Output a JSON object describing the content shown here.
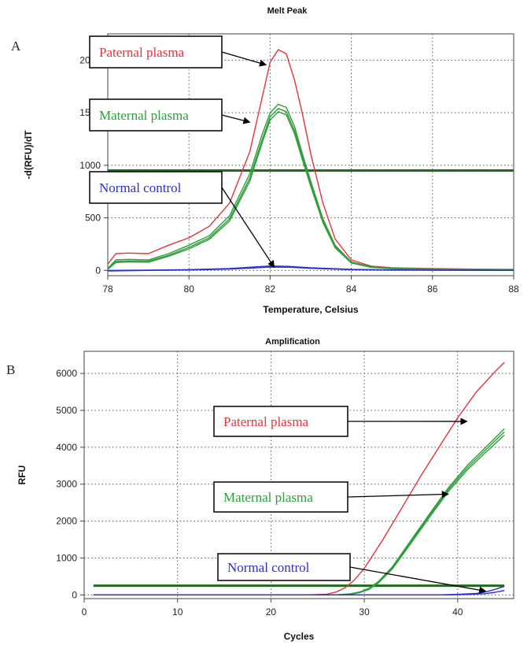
{
  "chart_data": [
    {
      "panel_label": "A",
      "type": "line",
      "title": "Melt Peak",
      "xlabel": "Temperature, Celsius",
      "ylabel": "-d(RFU)/dT",
      "xlim": [
        78,
        88
      ],
      "ylim": [
        -50,
        2250
      ],
      "xticks": [
        78,
        80,
        82,
        84,
        86,
        88
      ],
      "yticks": [
        0,
        500,
        1000,
        1500,
        2000
      ],
      "grid": true,
      "threshold": 950,
      "series": [
        {
          "color": "#e8323c",
          "x": [
            78,
            78.2,
            78.5,
            79,
            79.5,
            80,
            80.5,
            81,
            81.5,
            81.8,
            82,
            82.2,
            82.4,
            82.6,
            82.8,
            83,
            83.3,
            83.6,
            84,
            84.5,
            85,
            86,
            87,
            88
          ],
          "y": [
            60,
            160,
            165,
            160,
            240,
            310,
            420,
            640,
            1130,
            1640,
            1980,
            2100,
            2060,
            1810,
            1480,
            1110,
            640,
            300,
            100,
            40,
            25,
            18,
            12,
            10
          ]
        },
        {
          "color": "#2e9e3a",
          "x": [
            78,
            78.2,
            78.5,
            79,
            79.5,
            80,
            80.5,
            81,
            81.5,
            81.8,
            82,
            82.2,
            82.4,
            82.6,
            82.8,
            83,
            83.3,
            83.6,
            84,
            84.5,
            85,
            86,
            87,
            88
          ],
          "y": [
            20,
            100,
            105,
            100,
            160,
            240,
            330,
            520,
            920,
            1290,
            1500,
            1580,
            1550,
            1370,
            1100,
            850,
            490,
            240,
            80,
            35,
            20,
            15,
            10,
            8
          ]
        },
        {
          "color": "#2e9e3a",
          "x": [
            78,
            78.2,
            78.5,
            79,
            79.5,
            80,
            80.5,
            81,
            81.5,
            81.8,
            82,
            82.2,
            82.4,
            82.6,
            82.8,
            83,
            83.3,
            83.6,
            84,
            84.5,
            85,
            86,
            87,
            88
          ],
          "y": [
            15,
            85,
            90,
            88,
            145,
            220,
            310,
            490,
            880,
            1240,
            1460,
            1540,
            1510,
            1330,
            1070,
            820,
            470,
            225,
            75,
            30,
            18,
            13,
            9,
            7
          ]
        },
        {
          "color": "#2e9e3a",
          "x": [
            78,
            78.2,
            78.5,
            79,
            79.5,
            80,
            80.5,
            81,
            81.5,
            81.8,
            82,
            82.2,
            82.4,
            82.6,
            82.8,
            83,
            83.3,
            83.6,
            84,
            84.5,
            85,
            86,
            87,
            88
          ],
          "y": [
            10,
            75,
            80,
            78,
            135,
            205,
            295,
            470,
            850,
            1210,
            1430,
            1510,
            1480,
            1300,
            1045,
            800,
            455,
            215,
            70,
            28,
            16,
            12,
            8,
            6
          ]
        },
        {
          "color": "#2b2fd0",
          "x": [
            78,
            79,
            80,
            81,
            81.5,
            82,
            82.5,
            83,
            84,
            85,
            86,
            87,
            88
          ],
          "y": [
            0,
            3,
            8,
            18,
            30,
            42,
            38,
            25,
            10,
            5,
            3,
            2,
            1
          ]
        },
        {
          "color": "#2b2fd0",
          "x": [
            78,
            79,
            80,
            81,
            81.5,
            82,
            82.5,
            83,
            84,
            85,
            86,
            87,
            88
          ],
          "y": [
            -5,
            0,
            4,
            12,
            22,
            32,
            30,
            20,
            7,
            3,
            2,
            1,
            0
          ]
        }
      ],
      "annotations": [
        {
          "text": "Paternal plasma",
          "color": "#e8323c",
          "arrow_to": [
            81.9,
            1955
          ]
        },
        {
          "text": "Maternal plasma",
          "color": "#2e9e3a",
          "arrow_to": [
            81.5,
            1410
          ]
        },
        {
          "text": "Normal control",
          "color": "#2b2fd0",
          "arrow_to": [
            82.1,
            30
          ]
        }
      ]
    },
    {
      "panel_label": "B",
      "type": "line",
      "title": "Amplification",
      "xlabel": "Cycles",
      "ylabel": "RFU",
      "xlim": [
        0,
        46
      ],
      "ylim": [
        -100,
        6600
      ],
      "xticks": [
        0,
        10,
        20,
        30,
        40
      ],
      "yticks": [
        0,
        1000,
        2000,
        3000,
        4000,
        5000,
        6000
      ],
      "grid": true,
      "threshold": 250,
      "series": [
        {
          "color": "#e8323c",
          "x": [
            1,
            24,
            26,
            27,
            28,
            29,
            30,
            32,
            34,
            36,
            38,
            40,
            42,
            44,
            45
          ],
          "y": [
            0,
            0,
            20,
            80,
            200,
            420,
            720,
            1500,
            2350,
            3200,
            4000,
            4800,
            5500,
            6050,
            6300
          ]
        },
        {
          "color": "#2e9e3a",
          "x": [
            1,
            27,
            28.5,
            29.5,
            30.5,
            31.5,
            33,
            35,
            37,
            39,
            41,
            43,
            45
          ],
          "y": [
            0,
            0,
            30,
            80,
            180,
            360,
            760,
            1480,
            2200,
            2900,
            3500,
            4000,
            4500
          ]
        },
        {
          "color": "#2e9e3a",
          "x": [
            1,
            27,
            28.5,
            29.5,
            30.5,
            31.5,
            33,
            35,
            37,
            39,
            41,
            43,
            45
          ],
          "y": [
            0,
            0,
            25,
            70,
            165,
            340,
            730,
            1440,
            2160,
            2850,
            3440,
            3930,
            4420
          ]
        },
        {
          "color": "#2e9e3a",
          "x": [
            1,
            27,
            28.5,
            29.5,
            30.5,
            31.5,
            33,
            35,
            37,
            39,
            41,
            43,
            45
          ],
          "y": [
            0,
            0,
            20,
            60,
            150,
            320,
            700,
            1400,
            2110,
            2800,
            3380,
            3860,
            4330
          ]
        },
        {
          "color": "#2b2fd0",
          "x": [
            1,
            38,
            40,
            42,
            43,
            44,
            45
          ],
          "y": [
            0,
            0,
            15,
            40,
            80,
            150,
            230
          ]
        },
        {
          "color": "#2b2fd0",
          "x": [
            1,
            39,
            41,
            43,
            44,
            45
          ],
          "y": [
            0,
            0,
            10,
            35,
            70,
            120
          ]
        }
      ],
      "annotations": [
        {
          "text": "Paternal plasma",
          "color": "#e8323c",
          "arrow_to": [
            41,
            4700
          ]
        },
        {
          "text": "Maternal plasma",
          "color": "#2e9e3a",
          "arrow_to": [
            39,
            2730
          ]
        },
        {
          "text": "Normal control",
          "color": "#2b2fd0",
          "arrow_to": [
            43,
            100
          ]
        }
      ]
    }
  ]
}
